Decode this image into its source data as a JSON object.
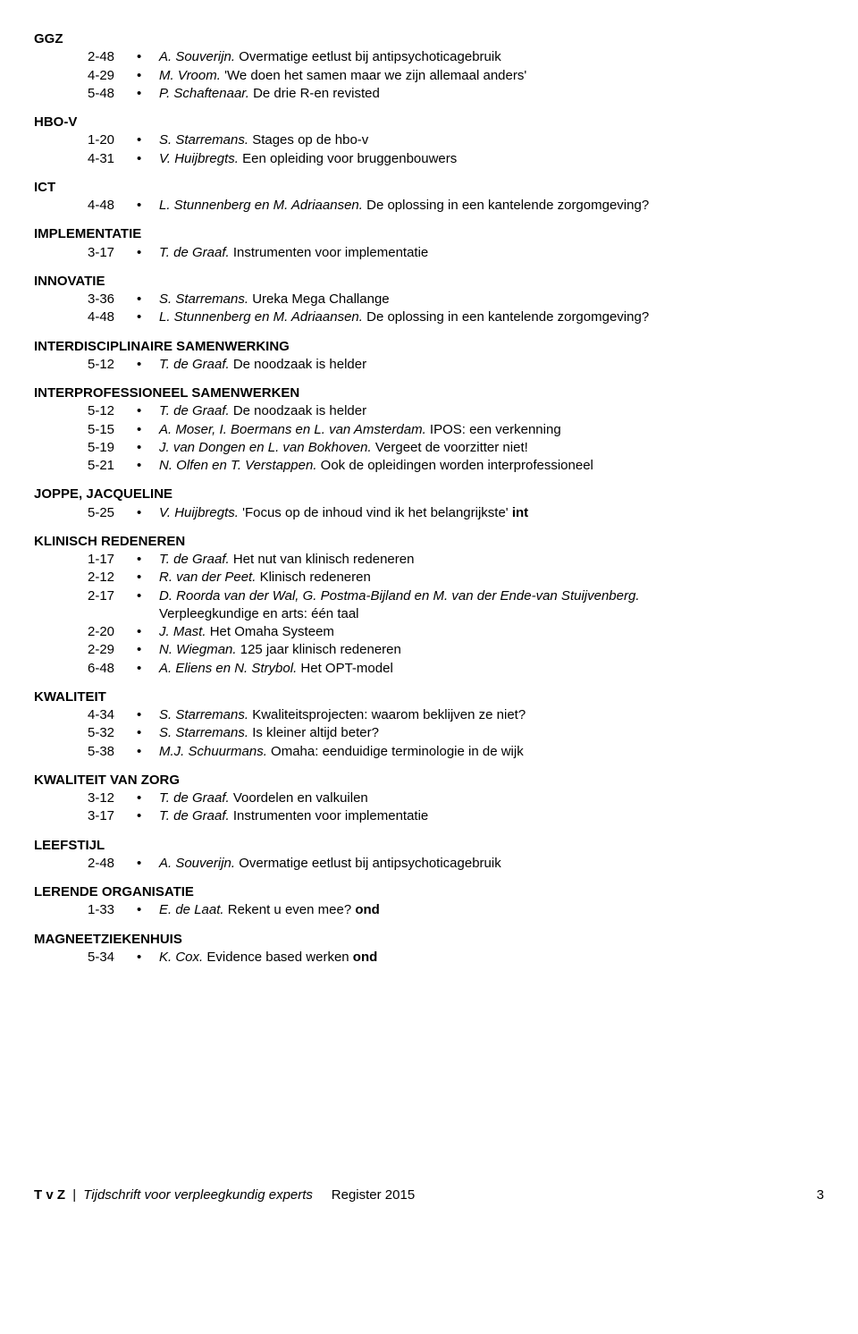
{
  "sections": [
    {
      "heading": "GGZ",
      "entries": [
        {
          "page": "2-48",
          "authors": "A. Souverijn.",
          "title": "Overmatige eetlust bij antipsychoticagebruik"
        },
        {
          "page": "4-29",
          "authors": "M. Vroom.",
          "title": "'We doen het samen maar we zijn allemaal anders'"
        },
        {
          "page": "5-48",
          "authors": "P. Schaftenaar.",
          "title": "De drie R-en revisted"
        }
      ]
    },
    {
      "heading": "HBO-V",
      "entries": [
        {
          "page": "1-20",
          "authors": "S. Starremans.",
          "title": "Stages op de hbo-v"
        },
        {
          "page": "4-31",
          "authors": "V. Huijbregts.",
          "title": "Een opleiding voor bruggenbouwers"
        }
      ]
    },
    {
      "heading": "ICT",
      "entries": [
        {
          "page": "4-48",
          "authors": "L. Stunnenberg en M. Adriaansen.",
          "title": "De oplossing in een kantelende zorgomgeving?"
        }
      ]
    },
    {
      "heading": "IMPLEMENTATIE",
      "entries": [
        {
          "page": "3-17",
          "authors": "T. de Graaf.",
          "title": "Instrumenten voor implementatie"
        }
      ]
    },
    {
      "heading": "INNOVATIE",
      "entries": [
        {
          "page": "3-36",
          "authors": "S. Starremans.",
          "title": "Ureka Mega Challange"
        },
        {
          "page": "4-48",
          "authors": "L. Stunnenberg en M. Adriaansen.",
          "title": "De oplossing in een kantelende zorgomgeving?"
        }
      ]
    },
    {
      "heading": "INTERDISCIPLINAIRE SAMENWERKING",
      "entries": [
        {
          "page": "5-12",
          "authors": "T. de Graaf.",
          "title": "De noodzaak is helder"
        }
      ]
    },
    {
      "heading": "INTERPROFESSIONEEL SAMENWERKEN",
      "entries": [
        {
          "page": "5-12",
          "authors": "T. de Graaf.",
          "title": "De noodzaak is helder"
        },
        {
          "page": "5-15",
          "authors": "A. Moser, I. Boermans en L. van Amsterdam.",
          "title": "IPOS: een verkenning"
        },
        {
          "page": "5-19",
          "authors": "J. van Dongen en L. van Bokhoven.",
          "title": "Vergeet de voorzitter niet!"
        },
        {
          "page": "5-21",
          "authors": "N. Olfen en T. Verstappen.",
          "title": "Ook de opleidingen worden interprofessioneel"
        }
      ]
    },
    {
      "heading": "JOPPE, JACQUELINE",
      "entries": [
        {
          "page": "5-25",
          "authors": "V. Huijbregts.",
          "title": "'Focus op de inhoud vind ik het belangrijkste' ",
          "suffix_bold": "int"
        }
      ]
    },
    {
      "heading": "KLINISCH REDENEREN",
      "entries": [
        {
          "page": "1-17",
          "authors": "T. de Graaf.",
          "title": "Het nut van klinisch redeneren"
        },
        {
          "page": "2-12",
          "authors": "R. van der Peet.",
          "title": "Klinisch redeneren"
        },
        {
          "page": "2-17",
          "authors": "D. Roorda van der Wal, G. Postma-Bijland en M. van der Ende-van Stuijvenberg.",
          "title": "Verpleegkundige en arts: één taal",
          "wrap": true
        },
        {
          "page": "2-20",
          "authors": "J. Mast.",
          "title": "Het Omaha Systeem"
        },
        {
          "page": "2-29",
          "authors": "N. Wiegman.",
          "title": "125 jaar klinisch redeneren"
        },
        {
          "page": "6-48",
          "authors": "A. Eliens en N. Strybol.",
          "title": "Het OPT-model"
        }
      ]
    },
    {
      "heading": "KWALITEIT",
      "entries": [
        {
          "page": "4-34",
          "authors": "S. Starremans.",
          "title": "Kwaliteitsprojecten: waarom beklijven ze niet?"
        },
        {
          "page": "5-32",
          "authors": "S. Starremans.",
          "title": "Is kleiner altijd beter?"
        },
        {
          "page": "5-38",
          "authors": "M.J. Schuurmans.",
          "title": "Omaha: eenduidige terminologie in de wijk"
        }
      ]
    },
    {
      "heading": "KWALITEIT VAN ZORG",
      "entries": [
        {
          "page": "3-12",
          "authors": "T. de Graaf.",
          "title": "Voordelen en valkuilen"
        },
        {
          "page": "3-17",
          "authors": "T. de Graaf.",
          "title": "Instrumenten voor implementatie"
        }
      ]
    },
    {
      "heading": "LEEFSTIJL",
      "entries": [
        {
          "page": "2-48",
          "authors": "A. Souverijn.",
          "title": "Overmatige eetlust bij antipsychoticagebruik"
        }
      ]
    },
    {
      "heading": "LERENDE ORGANISATIE",
      "entries": [
        {
          "page": "1-33",
          "authors": "E. de Laat.",
          "title": "Rekent u even mee? ",
          "suffix_bold": "ond"
        }
      ]
    },
    {
      "heading": "MAGNEETZIEKENHUIS",
      "entries": [
        {
          "page": "5-34",
          "authors": "K. Cox.",
          "title": "Evidence based werken ",
          "suffix_bold": "ond"
        }
      ]
    }
  ],
  "footer": {
    "journal_abbrev": "T v Z",
    "journal_full": "Tijdschrift voor verpleegkundig experts",
    "register_label": "Register 2015",
    "page_number": "3"
  }
}
